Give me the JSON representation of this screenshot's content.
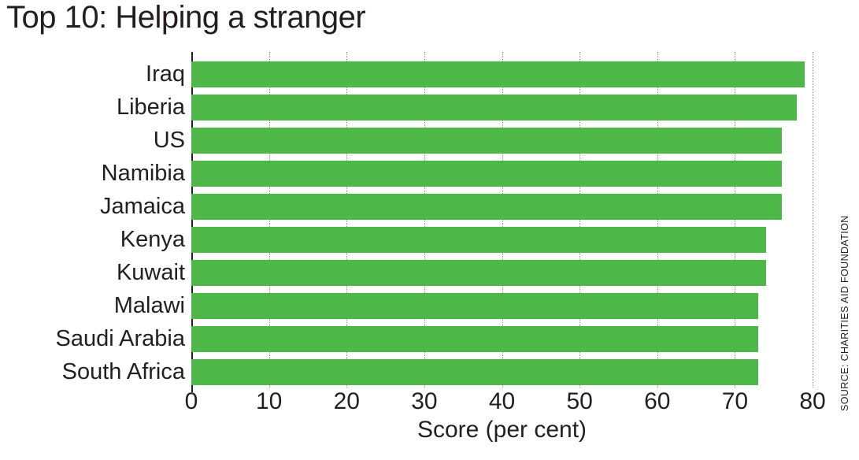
{
  "title": "Top 10: Helping a stranger",
  "source": "SOURCE: CHARITIES AID FOUNDATION",
  "colors": {
    "bar": "#4db848",
    "text": "#231f20",
    "gridline": "#8f8f8f",
    "background": "#ffffff"
  },
  "chart_data": {
    "type": "bar",
    "orientation": "horizontal",
    "title": "Top 10: Helping a stranger",
    "categories": [
      "Iraq",
      "Liberia",
      "US",
      "Namibia",
      "Jamaica",
      "Kenya",
      "Kuwait",
      "Malawi",
      "Saudi Arabia",
      "South Africa"
    ],
    "values": [
      79,
      78,
      76,
      76,
      76,
      74,
      74,
      73,
      73,
      73
    ],
    "xlabel": "Score (per cent)",
    "ylabel": "",
    "xlim": [
      0,
      80
    ],
    "xticks": [
      0,
      10,
      20,
      30,
      40,
      50,
      60,
      70,
      80
    ],
    "grid": "vertical-dotted",
    "legend": "none",
    "bar_color": "#4db848",
    "source": "SOURCE: CHARITIES AID FOUNDATION"
  }
}
